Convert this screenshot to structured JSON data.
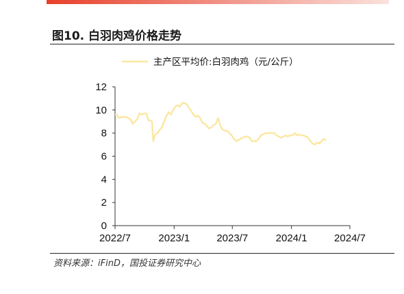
{
  "header": {
    "figure_title": "图10. 白羽肉鸡价格走势"
  },
  "footer": {
    "source": "资料来源：iFinD，国投证券研究中心"
  },
  "colors": {
    "accent_bar": "#e8402a",
    "series_line": "#fbe7a1",
    "axis": "#333333"
  },
  "chart_data": {
    "type": "line",
    "title": "",
    "xlabel": "",
    "ylabel": "",
    "ylim": [
      0,
      12
    ],
    "yticks": [
      0,
      2,
      4,
      6,
      8,
      10,
      12
    ],
    "xticks": [
      {
        "label": "2022/7",
        "date": "2022-07-01"
      },
      {
        "label": "2023/1",
        "date": "2023-01-01"
      },
      {
        "label": "2023/7",
        "date": "2023-07-01"
      },
      {
        "label": "2024/1",
        "date": "2024-01-01"
      },
      {
        "label": "2024/7",
        "date": "2024-07-01"
      }
    ],
    "legend": "top-center",
    "grid": false,
    "series": [
      {
        "name": "主产区平均价:白羽肉鸡（元/公斤）",
        "points": [
          [
            "2022-07-01",
            9.6
          ],
          [
            "2022-07-07",
            9.6
          ],
          [
            "2022-07-14",
            9.3
          ],
          [
            "2022-07-21",
            9.4
          ],
          [
            "2022-08-04",
            9.4
          ],
          [
            "2022-08-18",
            9.2
          ],
          [
            "2022-08-25",
            8.8
          ],
          [
            "2022-09-01",
            9.0
          ],
          [
            "2022-09-08",
            9.2
          ],
          [
            "2022-09-15",
            9.7
          ],
          [
            "2022-09-22",
            9.6
          ],
          [
            "2022-09-29",
            9.7
          ],
          [
            "2022-10-06",
            9.7
          ],
          [
            "2022-10-13",
            9.1
          ],
          [
            "2022-10-20",
            9.1
          ],
          [
            "2022-10-24",
            9.0
          ],
          [
            "2022-10-28",
            7.3
          ],
          [
            "2022-11-03",
            7.9
          ],
          [
            "2022-11-10",
            8.0
          ],
          [
            "2022-11-17",
            8.3
          ],
          [
            "2022-11-24",
            8.5
          ],
          [
            "2022-12-01",
            9.0
          ],
          [
            "2022-12-08",
            9.5
          ],
          [
            "2022-12-15",
            9.8
          ],
          [
            "2022-12-22",
            9.6
          ],
          [
            "2022-12-29",
            10.0
          ],
          [
            "2023-01-05",
            10.3
          ],
          [
            "2023-01-12",
            10.4
          ],
          [
            "2023-01-19",
            10.3
          ],
          [
            "2023-01-26",
            10.6
          ],
          [
            "2023-02-02",
            10.6
          ],
          [
            "2023-02-09",
            10.5
          ],
          [
            "2023-02-16",
            10.2
          ],
          [
            "2023-02-23",
            9.9
          ],
          [
            "2023-03-02",
            9.6
          ],
          [
            "2023-03-09",
            9.4
          ],
          [
            "2023-03-16",
            9.5
          ],
          [
            "2023-03-23",
            9.3
          ],
          [
            "2023-03-30",
            8.9
          ],
          [
            "2023-04-06",
            8.8
          ],
          [
            "2023-04-13",
            8.6
          ],
          [
            "2023-04-20",
            8.4
          ],
          [
            "2023-04-27",
            8.5
          ],
          [
            "2023-05-04",
            8.7
          ],
          [
            "2023-05-11",
            8.8
          ],
          [
            "2023-05-18",
            9.3
          ],
          [
            "2023-05-25",
            8.6
          ],
          [
            "2023-06-01",
            8.3
          ],
          [
            "2023-06-08",
            8.2
          ],
          [
            "2023-06-15",
            8.2
          ],
          [
            "2023-06-22",
            8.0
          ],
          [
            "2023-06-29",
            7.8
          ],
          [
            "2023-07-06",
            7.5
          ],
          [
            "2023-07-13",
            7.3
          ],
          [
            "2023-07-20",
            7.4
          ],
          [
            "2023-07-27",
            7.5
          ],
          [
            "2023-08-03",
            7.6
          ],
          [
            "2023-08-10",
            7.7
          ],
          [
            "2023-08-17",
            7.7
          ],
          [
            "2023-08-24",
            7.6
          ],
          [
            "2023-08-31",
            7.3
          ],
          [
            "2023-09-07",
            7.3
          ],
          [
            "2023-09-14",
            7.3
          ],
          [
            "2023-09-21",
            7.5
          ],
          [
            "2023-09-28",
            7.8
          ],
          [
            "2023-10-05",
            7.9
          ],
          [
            "2023-10-12",
            8.0
          ],
          [
            "2023-10-19",
            8.0
          ],
          [
            "2023-10-26",
            8.0
          ],
          [
            "2023-11-02",
            8.0
          ],
          [
            "2023-11-09",
            8.0
          ],
          [
            "2023-11-16",
            7.8
          ],
          [
            "2023-11-23",
            7.7
          ],
          [
            "2023-11-30",
            7.6
          ],
          [
            "2023-12-07",
            7.7
          ],
          [
            "2023-12-14",
            7.8
          ],
          [
            "2023-12-21",
            7.7
          ],
          [
            "2023-12-28",
            7.8
          ],
          [
            "2024-01-04",
            7.8
          ],
          [
            "2024-01-11",
            8.0
          ],
          [
            "2024-01-18",
            7.8
          ],
          [
            "2024-01-25",
            7.9
          ],
          [
            "2024-02-01",
            7.8
          ],
          [
            "2024-02-08",
            7.8
          ],
          [
            "2024-02-15",
            7.7
          ],
          [
            "2024-02-22",
            7.6
          ],
          [
            "2024-02-29",
            7.3
          ],
          [
            "2024-03-07",
            7.1
          ],
          [
            "2024-03-14",
            7.0
          ],
          [
            "2024-03-21",
            7.2
          ],
          [
            "2024-03-28",
            7.1
          ],
          [
            "2024-04-04",
            7.3
          ],
          [
            "2024-04-11",
            7.5
          ],
          [
            "2024-04-18",
            7.4
          ]
        ]
      }
    ]
  }
}
